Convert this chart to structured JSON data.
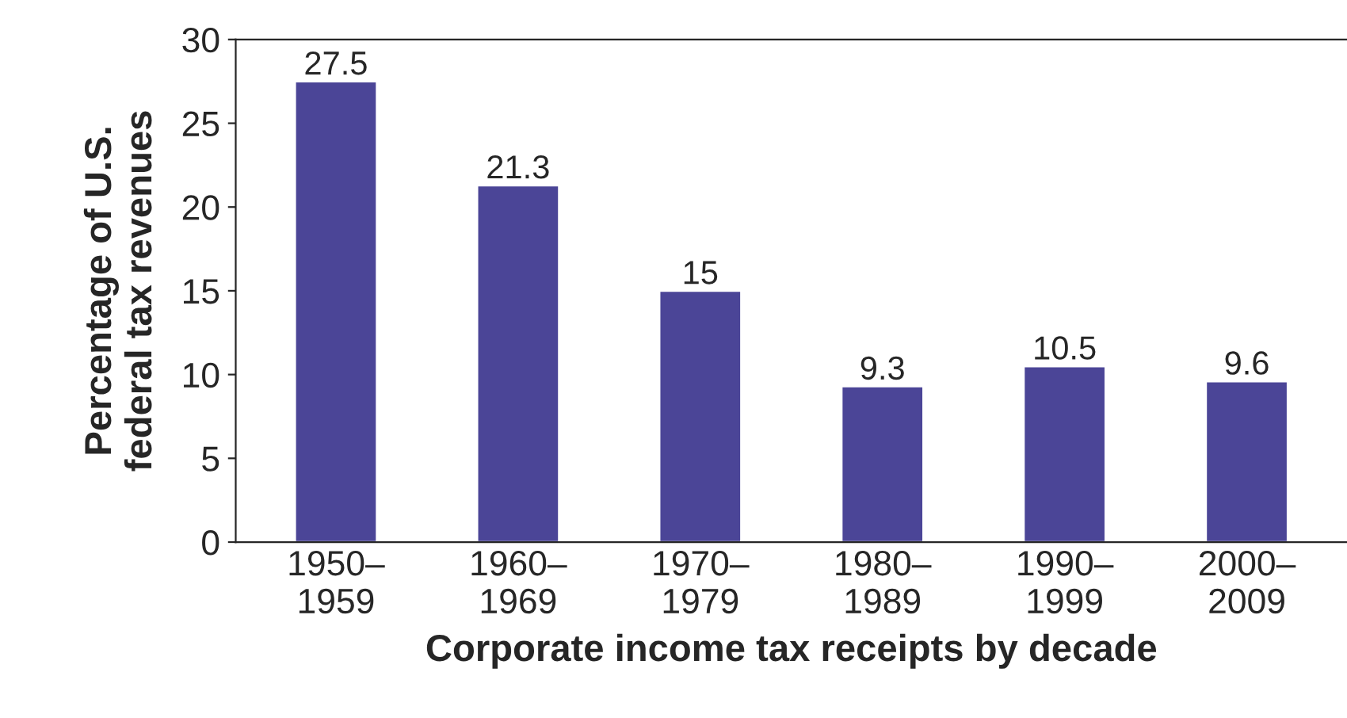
{
  "chart_data": {
    "type": "bar",
    "xlabel": "Corporate income tax receipts by decade",
    "ylabel": "Percentage of U.S.\nfederal tax revenues",
    "categories": [
      "1950–\n1959",
      "1960–\n1969",
      "1970–\n1979",
      "1980–\n1989",
      "1990–\n1999",
      "2000–\n2009"
    ],
    "values": [
      27.5,
      21.3,
      15,
      9.3,
      10.5,
      9.6
    ],
    "color": "#4b4597",
    "ylim": [
      0,
      30
    ],
    "yticks": [
      0,
      5,
      10,
      15,
      20,
      25,
      30
    ],
    "data_labels": true,
    "grid": false
  }
}
